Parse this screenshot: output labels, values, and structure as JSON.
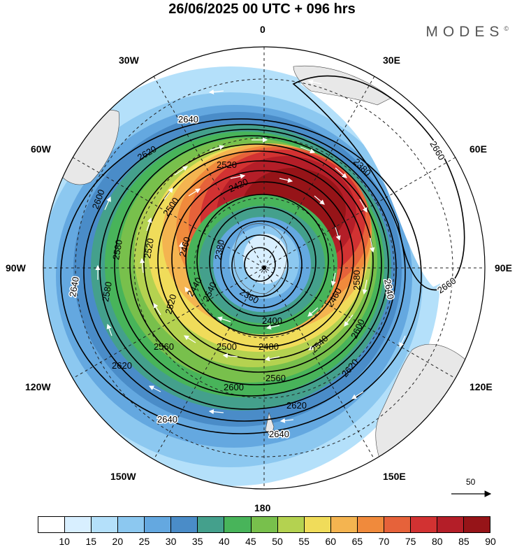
{
  "title": "26/06/2025  00 UTC  + 096 hrs",
  "logo": "MODES",
  "logo_mark": "©",
  "map": {
    "projection": "south-polar-stereographic",
    "longitude_labels": {
      "top": "0",
      "top_right": "30E",
      "right_upper": "60E",
      "right": "90E",
      "right_lower": "120E",
      "bottom_right": "150E",
      "bottom": "180",
      "bottom_left": "150W",
      "left_lower": "120W",
      "left": "90W",
      "left_upper": "60W",
      "top_left": "30W"
    },
    "contour_levels": [
      2360,
      2380,
      2400,
      2420,
      2440,
      2460,
      2480,
      2500,
      2520,
      2540,
      2560,
      2580,
      2600,
      2620,
      2640,
      2660
    ],
    "contour_labels": [
      "2640",
      "2620",
      "2600",
      "2580",
      "2560",
      "2540",
      "2520",
      "2500",
      "2480",
      "2460",
      "2440",
      "2420",
      "2400",
      "2380",
      "2360",
      "2660"
    ]
  },
  "reference_vector": {
    "value": "50"
  },
  "colorbar": {
    "colors": [
      "#ffffff",
      "#d8efff",
      "#b4e0fa",
      "#8cc8f0",
      "#64a8e0",
      "#4a8cc8",
      "#44a08c",
      "#48b45a",
      "#78c04c",
      "#b4d250",
      "#f0dc5a",
      "#f4b450",
      "#f08a3c",
      "#e6623a",
      "#d23232",
      "#b41e28",
      "#961418"
    ],
    "labels": [
      "10",
      "15",
      "20",
      "25",
      "30",
      "35",
      "40",
      "45",
      "50",
      "55",
      "60",
      "65",
      "70",
      "75",
      "80",
      "85",
      "90"
    ]
  }
}
